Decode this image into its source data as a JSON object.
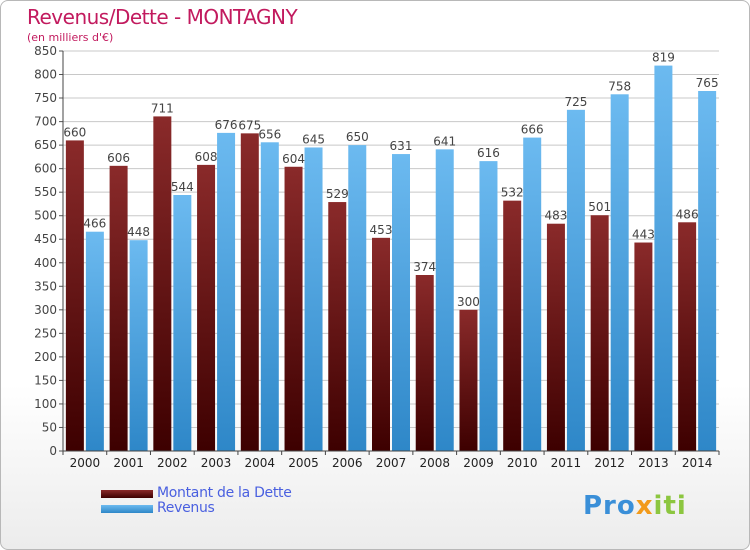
{
  "header": {
    "title": "Revenus/Dette - MONTAGNY",
    "subtitle": "(en milliers d'€)"
  },
  "colors": {
    "dette_top": "#8a2a2a",
    "dette_bottom": "#3d0000",
    "revenus_top": "#6cbaf0",
    "revenus_bottom": "#2e87c8",
    "grid": "#c8c8c8",
    "title": "#c21a5e",
    "legend_text": "#4a60e0"
  },
  "legend": {
    "dette_label": "Montant de la Dette",
    "revenus_label": "Revenus",
    "placement": "bottom-left"
  },
  "logo": {
    "text_part1": "Pro",
    "text_part2": "x",
    "text_part3": "iti"
  },
  "chart_data": {
    "type": "bar",
    "categories": [
      "2000",
      "2001",
      "2002",
      "2003",
      "2004",
      "2005",
      "2006",
      "2007",
      "2008",
      "2009",
      "2010",
      "2011",
      "2012",
      "2013",
      "2014"
    ],
    "series": [
      {
        "name": "Montant de la Dette",
        "values": [
          660,
          606,
          711,
          608,
          675,
          604,
          529,
          453,
          374,
          300,
          532,
          483,
          501,
          443,
          486
        ]
      },
      {
        "name": "Revenus",
        "values": [
          466,
          448,
          544,
          676,
          656,
          645,
          650,
          631,
          641,
          616,
          666,
          725,
          758,
          819,
          765
        ]
      }
    ],
    "ylim": [
      0,
      850
    ],
    "yticks": [
      0,
      50,
      100,
      150,
      200,
      250,
      300,
      350,
      400,
      450,
      500,
      550,
      600,
      650,
      700,
      750,
      800,
      850
    ],
    "grid": true,
    "xlabel": "",
    "ylabel": ""
  }
}
